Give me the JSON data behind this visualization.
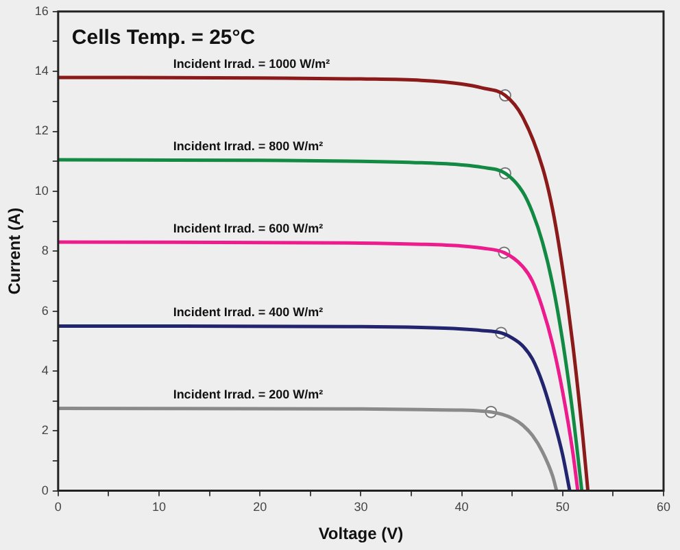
{
  "chart_data": {
    "type": "line",
    "title": "Cells Temp. = 25°C",
    "xlabel": "Voltage (V)",
    "ylabel": "Current (A)",
    "xlim": [
      0,
      60
    ],
    "ylim": [
      0,
      16
    ],
    "xticks": [
      0,
      {
        "value": 5,
        "label": null
      },
      10,
      {
        "value": 15,
        "label": null
      },
      20,
      {
        "value": 25,
        "label": null
      },
      30,
      {
        "value": 35,
        "label": null
      },
      40,
      {
        "value": 45,
        "label": null
      },
      50,
      {
        "value": 55,
        "label": null
      },
      60
    ],
    "yticks": [
      0,
      {
        "value": 1,
        "label": null
      },
      2,
      {
        "value": 3,
        "label": null
      },
      4,
      {
        "value": 5,
        "label": null
      },
      6,
      {
        "value": 7,
        "label": null
      },
      8,
      {
        "value": 9,
        "label": null
      },
      10,
      {
        "value": 11,
        "label": null
      },
      12,
      {
        "value": 13,
        "label": null
      },
      14,
      {
        "value": 15,
        "label": null
      },
      16
    ],
    "grid": false,
    "legend": false,
    "marker": "none",
    "line_style": "solid",
    "series": [
      {
        "name": "Incident Irrad. = 1000 W/m²",
        "color": "#8b1a1a",
        "x": [
          0,
          20,
          30,
          36,
          40,
          42,
          44.3,
          46,
          48,
          49,
          50,
          51,
          52,
          52.5
        ],
        "values": [
          13.8,
          13.78,
          13.75,
          13.7,
          13.58,
          13.45,
          13.2,
          12.5,
          10.8,
          9.4,
          7.4,
          4.9,
          1.8,
          0
        ]
      },
      {
        "name": "Incident Irrad. = 800 W/m²",
        "color": "#138a43",
        "x": [
          0,
          20,
          30,
          36,
          40,
          42,
          44.3,
          46,
          47,
          48,
          49,
          50,
          51,
          51.9
        ],
        "values": [
          11.05,
          11.03,
          11.0,
          10.95,
          10.88,
          10.8,
          10.6,
          10.0,
          9.3,
          8.3,
          6.9,
          5.0,
          2.6,
          0
        ]
      },
      {
        "name": "Incident Irrad. = 600 W/m²",
        "color": "#ec1c8c",
        "x": [
          0,
          30,
          36,
          40,
          42,
          44.2,
          46,
          47,
          48,
          49,
          50,
          51,
          51.5
        ],
        "values": [
          8.3,
          8.27,
          8.23,
          8.17,
          8.1,
          7.95,
          7.5,
          7.0,
          6.1,
          4.9,
          3.3,
          1.3,
          0
        ]
      },
      {
        "name": "Incident Irrad. = 400 W/m²",
        "color": "#23246e",
        "x": [
          0,
          30,
          36,
          40,
          42,
          43.9,
          45,
          46,
          47,
          48,
          49,
          50,
          50.7
        ],
        "values": [
          5.5,
          5.48,
          5.45,
          5.4,
          5.35,
          5.27,
          5.1,
          4.85,
          4.4,
          3.6,
          2.5,
          1.2,
          0
        ]
      },
      {
        "name": "Incident Irrad. = 200 W/m²",
        "color": "#8a8a8a",
        "x": [
          0,
          30,
          36,
          40,
          42,
          42.9,
          44,
          45,
          46,
          47,
          48,
          49,
          49.4
        ],
        "values": [
          2.75,
          2.73,
          2.71,
          2.69,
          2.66,
          2.63,
          2.55,
          2.42,
          2.2,
          1.85,
          1.3,
          0.5,
          0
        ]
      },
      {
        "type": "scatter",
        "marker": "circle",
        "color": "#777777",
        "x": [
          44.3,
          44.3,
          44.2,
          43.9,
          42.9
        ],
        "values": [
          13.2,
          10.6,
          7.95,
          5.27,
          2.63
        ]
      }
    ]
  }
}
